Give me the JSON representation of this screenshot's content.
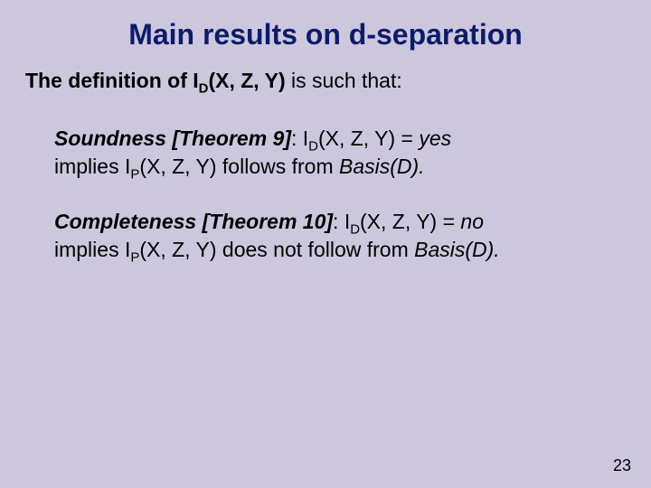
{
  "colors": {
    "background": "#cdc7de",
    "title": "#0d1b6b",
    "body_text": "#000000"
  },
  "typography": {
    "title_fontsize": 32,
    "body_fontsize": 23,
    "page_number_fontsize": 18,
    "font_family": "Arial"
  },
  "title": "Main results on d-separation",
  "intro": {
    "prefix_bold": "The definition of ",
    "expr_I": "I",
    "expr_sub": "D",
    "expr_args": "(X, Z, Y)",
    "suffix": "  is such that:"
  },
  "theorems": [
    {
      "label": "Soundness [Theorem 9]",
      "colon": ": ",
      "expr1_I": "I",
      "expr1_sub": "D",
      "expr1_args": "(X, Z, Y) = ",
      "expr1_val": "yes",
      "line2_prefix": " implies ",
      "expr2_I": "I",
      "expr2_sub": "P",
      "expr2_args": "(X, Z, Y)",
      "line2_mid": " follows from ",
      "basis": "Basis(D).",
      "line2_suffix": ""
    },
    {
      "label": "Completeness [Theorem 10]",
      "colon": ": ",
      "expr1_I": "I",
      "expr1_sub": "D",
      "expr1_args": "(X, Z, Y) = ",
      "expr1_val": "no",
      "line2_prefix": " implies ",
      "expr2_I": "I",
      "expr2_sub": "P",
      "expr2_args": "(X, Z, Y)",
      "line2_mid": " does not follow from ",
      "basis": "Basis(D).",
      "line2_suffix": ""
    }
  ],
  "page_number": "23"
}
